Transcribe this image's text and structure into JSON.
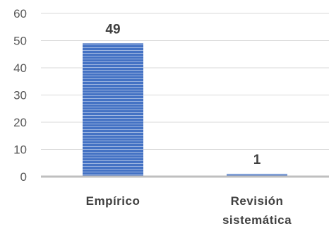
{
  "chart_data": {
    "type": "bar",
    "title": "",
    "xlabel": "",
    "ylabel": "",
    "categories": [
      [
        "Empírico"
      ],
      [
        "Revisión",
        "sistemática"
      ]
    ],
    "values": [
      49,
      1
    ],
    "data_labels": [
      "49",
      "1"
    ],
    "ylim": [
      0,
      60
    ],
    "yticks": [
      0,
      10,
      20,
      30,
      40,
      50,
      60
    ],
    "grid": true,
    "legend": "none",
    "colors": {
      "bar": "#4472c4",
      "bar_stripe": "#9db5e0",
      "gridline": "#d9d9d9",
      "baseline": "#bfbfbf"
    }
  }
}
